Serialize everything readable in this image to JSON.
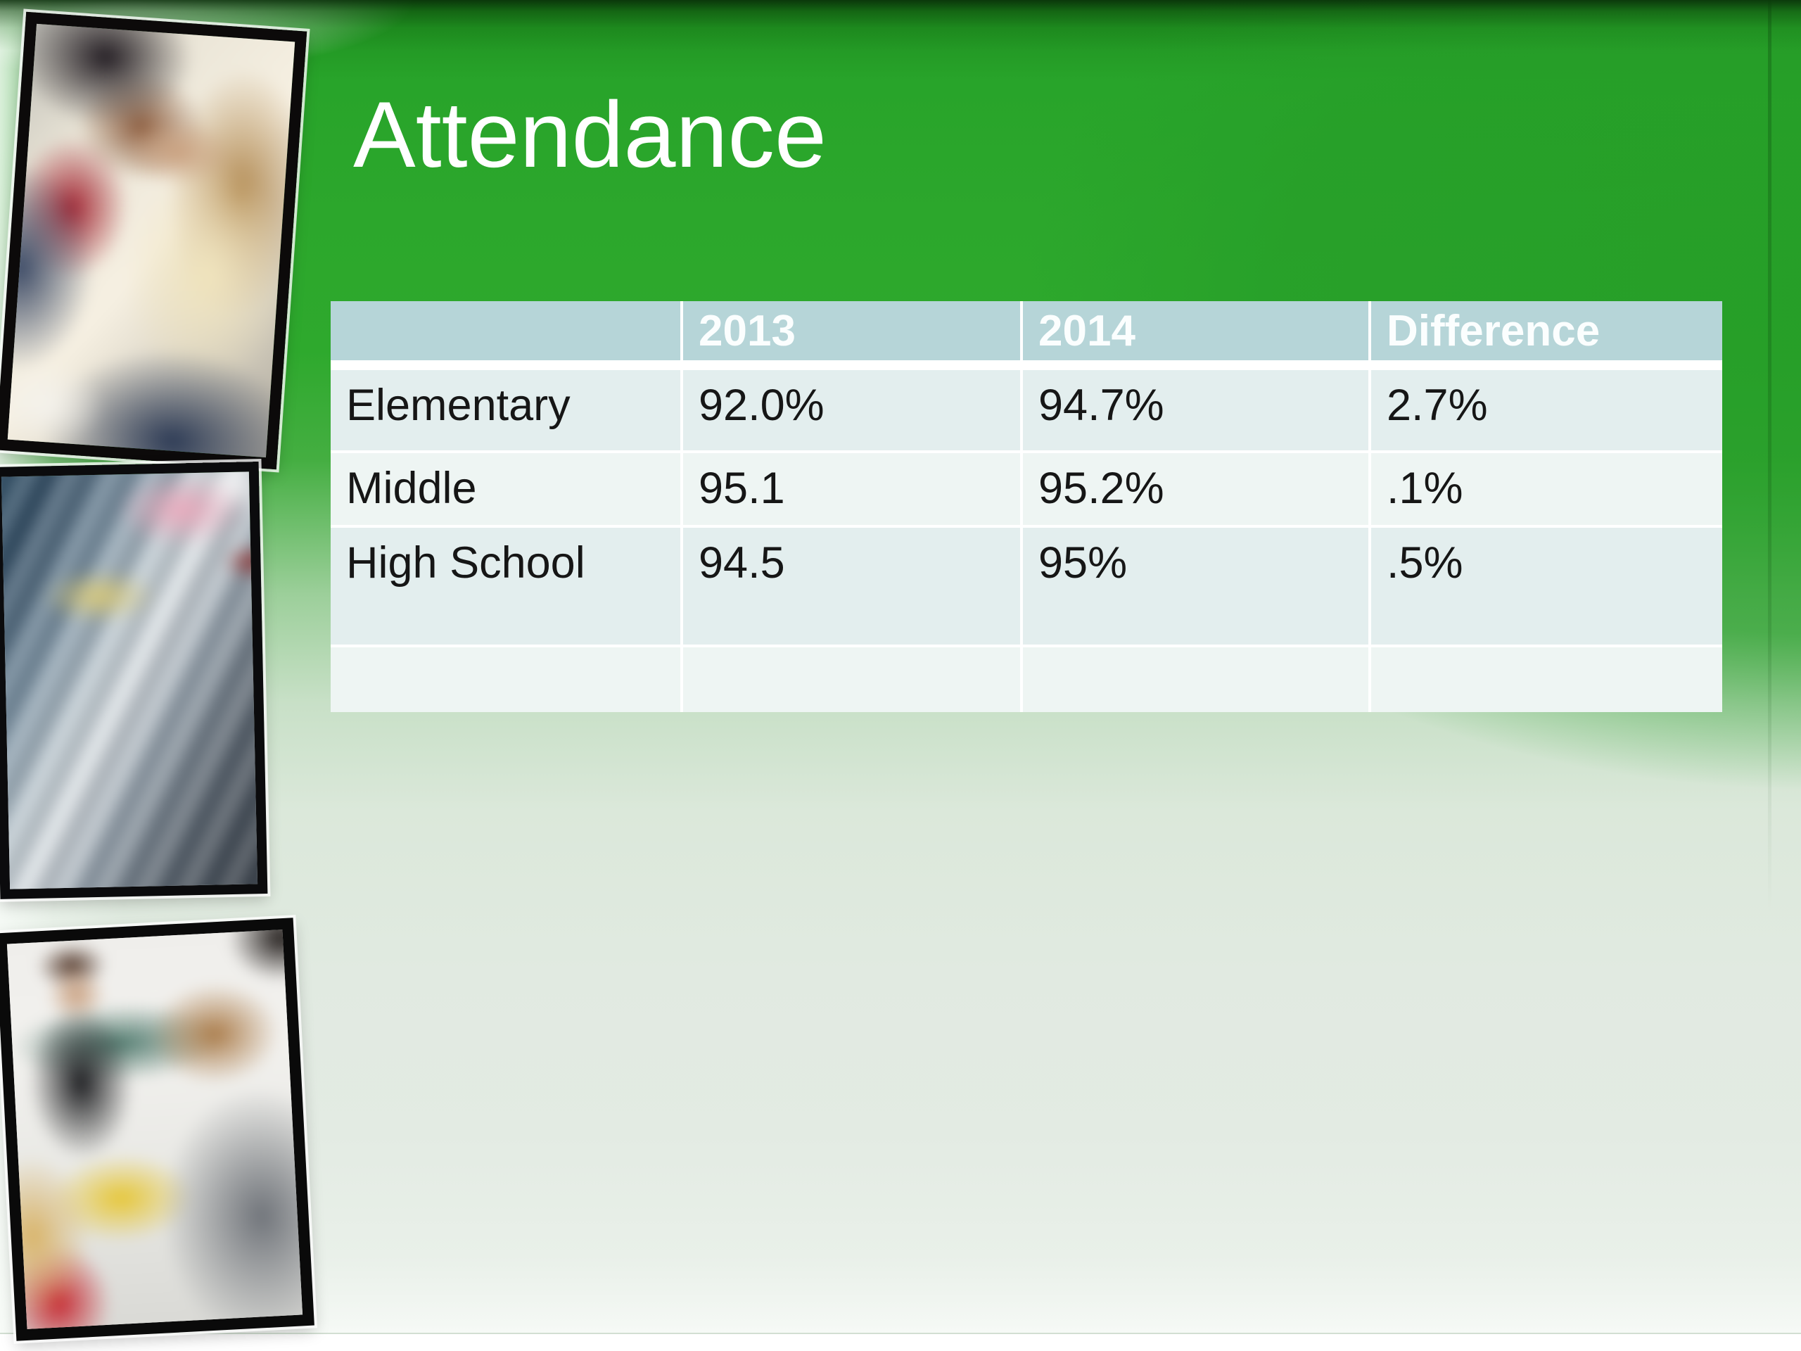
{
  "slide": {
    "title": "Attendance",
    "photos": [
      {
        "name": "students-studying"
      },
      {
        "name": "school-supplies-motion-blur"
      },
      {
        "name": "classroom-teacher-with-students"
      }
    ],
    "table": {
      "columns": [
        "",
        "2013",
        "2014",
        "Difference"
      ],
      "rows": [
        {
          "cells": [
            "Elementary",
            "92.0%",
            "94.7%",
            "2.7%"
          ]
        },
        {
          "cells": [
            "Middle",
            "95.1",
            "95.2%",
            ".1%"
          ]
        },
        {
          "cells": [
            "High School",
            "94.5",
            "95%",
            ".5%"
          ]
        },
        {
          "cells": [
            "",
            "",
            "",
            ""
          ]
        }
      ]
    },
    "colors": {
      "background_green": "#2ca72c",
      "header_bg": "#b6d5d8",
      "header_text": "#ffffff",
      "row_odd_bg": "#e3eeee",
      "row_even_bg": "#eef5f3",
      "body_text": "#161616",
      "title_text": "#ffffff"
    }
  },
  "chart_data": {
    "type": "table",
    "title": "Attendance",
    "categories": [
      "Elementary",
      "Middle",
      "High School"
    ],
    "series": [
      {
        "name": "2013",
        "values": [
          92.0,
          95.1,
          94.5
        ]
      },
      {
        "name": "2014",
        "values": [
          94.7,
          95.2,
          95.0
        ]
      },
      {
        "name": "Difference",
        "values": [
          2.7,
          0.1,
          0.5
        ]
      }
    ]
  }
}
